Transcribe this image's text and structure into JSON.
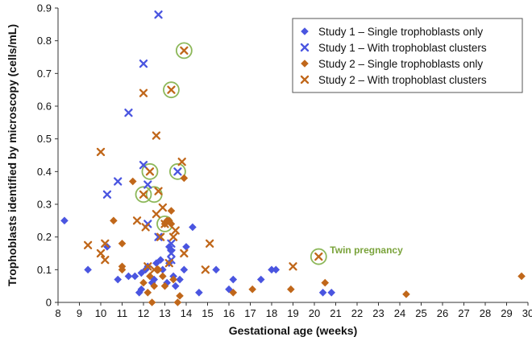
{
  "chart_data": {
    "type": "scatter",
    "xlabel": "Gestational age (weeks)",
    "ylabel": "Trophoblasts identified by microscopy (cells/mL)",
    "xlim": [
      8,
      30
    ],
    "ylim": [
      0,
      0.9
    ],
    "x_ticks": [
      "8",
      "9",
      "10",
      "11",
      "12",
      "13",
      "14",
      "15",
      "16",
      "17",
      "18",
      "19",
      "20",
      "21",
      "22",
      "23",
      "24",
      "25",
      "26",
      "27",
      "28",
      "29",
      "30"
    ],
    "y_ticks": [
      "0",
      "0.1",
      "0.2",
      "0.3",
      "0.4",
      "0.5",
      "0.6",
      "0.7",
      "0.8",
      "0.9"
    ],
    "grid": false,
    "legend_position": "top-right",
    "series": [
      {
        "name": "Study 1 – Single trophoblasts only",
        "marker": "diamond",
        "color": "#4a55e0",
        "points": [
          [
            8.3,
            0.25
          ],
          [
            9.4,
            0.1
          ],
          [
            10.3,
            0.17
          ],
          [
            10.8,
            0.07
          ],
          [
            11.3,
            0.08
          ],
          [
            11.6,
            0.08
          ],
          [
            11.9,
            0.04
          ],
          [
            11.8,
            0.03
          ],
          [
            11.9,
            0.09
          ],
          [
            12.1,
            0.1
          ],
          [
            12.2,
            0.11
          ],
          [
            12.4,
            0.06
          ],
          [
            12.5,
            0.07
          ],
          [
            12.6,
            0.12
          ],
          [
            12.8,
            0.13
          ],
          [
            12.9,
            0.1
          ],
          [
            13.1,
            0.06
          ],
          [
            13.2,
            0.17
          ],
          [
            13.3,
            0.16
          ],
          [
            13.4,
            0.08
          ],
          [
            13.2,
            0.12
          ],
          [
            13.5,
            0.05
          ],
          [
            13.7,
            0.07
          ],
          [
            13.9,
            0.1
          ],
          [
            14.0,
            0.17
          ],
          [
            14.3,
            0.23
          ],
          [
            14.6,
            0.03
          ],
          [
            15.4,
            0.1
          ],
          [
            16.0,
            0.04
          ],
          [
            16.2,
            0.07
          ],
          [
            17.5,
            0.07
          ],
          [
            18.0,
            0.1
          ],
          [
            18.2,
            0.1
          ],
          [
            20.4,
            0.03
          ],
          [
            20.8,
            0.03
          ]
        ]
      },
      {
        "name": "Study 1 – With trophoblast clusters",
        "marker": "x",
        "color": "#4a55e0",
        "points": [
          [
            10.3,
            0.33
          ],
          [
            10.8,
            0.37
          ],
          [
            11.3,
            0.58
          ],
          [
            12.0,
            0.73
          ],
          [
            12.7,
            0.88
          ],
          [
            12.0,
            0.42
          ],
          [
            12.2,
            0.36
          ],
          [
            12.7,
            0.2
          ],
          [
            13.3,
            0.15
          ],
          [
            13.3,
            0.18
          ],
          [
            13.3,
            0.13
          ],
          [
            13.6,
            0.4
          ],
          [
            12.2,
            0.24
          ]
        ]
      },
      {
        "name": "Study 2 – Single trophoblasts only",
        "marker": "diamond",
        "color": "#c0671a",
        "points": [
          [
            10.6,
            0.25
          ],
          [
            11.0,
            0.18
          ],
          [
            11.0,
            0.11
          ],
          [
            11.0,
            0.1
          ],
          [
            11.5,
            0.37
          ],
          [
            12.0,
            0.06
          ],
          [
            12.2,
            0.03
          ],
          [
            12.3,
            0.08
          ],
          [
            12.4,
            0.0
          ],
          [
            12.5,
            0.05
          ],
          [
            12.7,
            0.1
          ],
          [
            12.9,
            0.08
          ],
          [
            13.0,
            0.05
          ],
          [
            13.0,
            0.24
          ],
          [
            13.1,
            0.25
          ],
          [
            13.2,
            0.25
          ],
          [
            13.3,
            0.24
          ],
          [
            13.3,
            0.28
          ],
          [
            13.4,
            0.07
          ],
          [
            13.6,
            0.0
          ],
          [
            13.7,
            0.02
          ],
          [
            13.9,
            0.38
          ],
          [
            16.2,
            0.03
          ],
          [
            17.1,
            0.04
          ],
          [
            18.9,
            0.04
          ],
          [
            20.5,
            0.06
          ],
          [
            24.3,
            0.025
          ],
          [
            29.7,
            0.08
          ]
        ]
      },
      {
        "name": "Study 2 – With trophoblast clusters",
        "marker": "x",
        "color": "#c0671a",
        "points": [
          [
            9.4,
            0.175
          ],
          [
            10.0,
            0.46
          ],
          [
            10.0,
            0.15
          ],
          [
            10.2,
            0.13
          ],
          [
            10.2,
            0.18
          ],
          [
            11.7,
            0.25
          ],
          [
            12.0,
            0.64
          ],
          [
            12.0,
            0.33
          ],
          [
            12.1,
            0.23
          ],
          [
            12.2,
            0.11
          ],
          [
            12.3,
            0.4
          ],
          [
            12.5,
            0.1
          ],
          [
            12.6,
            0.51
          ],
          [
            12.6,
            0.27
          ],
          [
            12.7,
            0.34
          ],
          [
            12.8,
            0.2
          ],
          [
            12.9,
            0.29
          ],
          [
            13.0,
            0.24
          ],
          [
            13.2,
            0.12
          ],
          [
            13.3,
            0.65
          ],
          [
            13.4,
            0.2
          ],
          [
            13.5,
            0.22
          ],
          [
            13.8,
            0.43
          ],
          [
            13.9,
            0.77
          ],
          [
            13.9,
            0.15
          ],
          [
            14.9,
            0.1
          ],
          [
            15.1,
            0.18
          ],
          [
            19.0,
            0.11
          ],
          [
            20.2,
            0.14
          ]
        ]
      }
    ],
    "highlighted": [
      [
        13.9,
        0.77
      ],
      [
        13.3,
        0.65
      ],
      [
        12.3,
        0.4
      ],
      [
        13.6,
        0.4
      ],
      [
        12.0,
        0.33
      ],
      [
        12.5,
        0.33
      ],
      [
        13.0,
        0.24
      ],
      [
        20.2,
        0.14
      ]
    ],
    "annotation": {
      "text": "Twin pregnancy",
      "x": 20.2,
      "y": 0.14
    },
    "highlight_color": "#8db85a"
  }
}
